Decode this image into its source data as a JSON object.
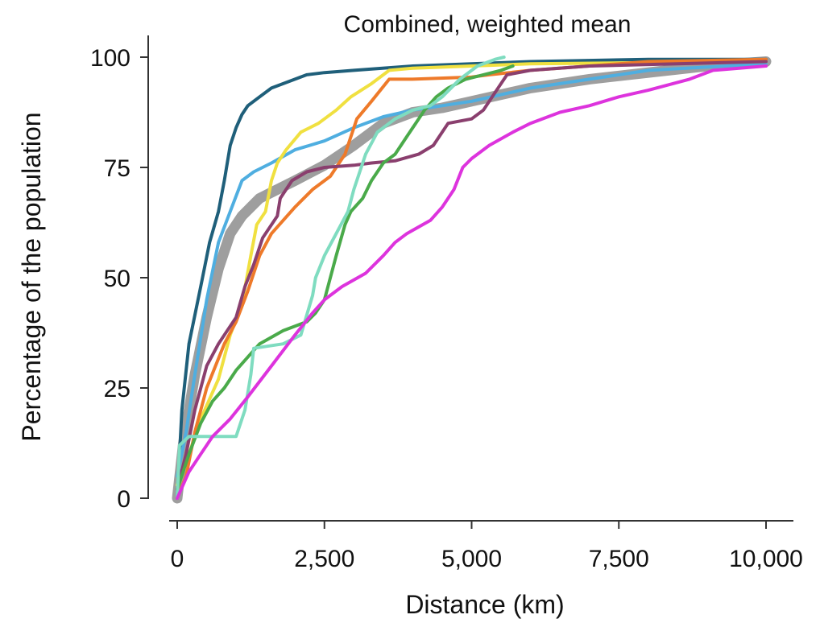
{
  "chart_data": {
    "type": "line",
    "title": "Combined, weighted mean",
    "xlabel": "Distance (km)",
    "ylabel": "Percentage of the population",
    "xlim": [
      0,
      10000
    ],
    "ylim": [
      0,
      100
    ],
    "xticks": [
      0,
      2500,
      5000,
      7500,
      10000
    ],
    "xtick_labels": [
      "0",
      "2,500",
      "5,000",
      "7,500",
      "10,000"
    ],
    "yticks": [
      0,
      25,
      50,
      75,
      100
    ],
    "ytick_labels": [
      "0",
      "25",
      "50",
      "75",
      "100"
    ],
    "grid": false,
    "series": [
      {
        "color": "#9e9e9e",
        "role": "weighted-mean",
        "points": [
          [
            0,
            0
          ],
          [
            100,
            12
          ],
          [
            300,
            28
          ],
          [
            500,
            41
          ],
          [
            700,
            52
          ],
          [
            900,
            60
          ],
          [
            1100,
            64
          ],
          [
            1400,
            68
          ],
          [
            2000,
            72
          ],
          [
            2500,
            75.5
          ],
          [
            3000,
            80
          ],
          [
            3500,
            85
          ],
          [
            4000,
            87.5
          ],
          [
            4500,
            88.5
          ],
          [
            5000,
            90
          ],
          [
            6000,
            93
          ],
          [
            7000,
            95
          ],
          [
            8000,
            96.5
          ],
          [
            9000,
            98
          ],
          [
            10000,
            99
          ]
        ]
      },
      {
        "color": "#1f5f7a",
        "points": [
          [
            0,
            0
          ],
          [
            80,
            20
          ],
          [
            200,
            35
          ],
          [
            400,
            48
          ],
          [
            550,
            58
          ],
          [
            700,
            65
          ],
          [
            800,
            72
          ],
          [
            900,
            80
          ],
          [
            1000,
            84
          ],
          [
            1100,
            87
          ],
          [
            1200,
            89
          ],
          [
            1400,
            91
          ],
          [
            1600,
            93
          ],
          [
            1800,
            94
          ],
          [
            2200,
            96
          ],
          [
            2500,
            96.5
          ],
          [
            3000,
            97
          ],
          [
            4000,
            98
          ],
          [
            5000,
            98.5
          ],
          [
            6000,
            99
          ],
          [
            8000,
            99.5
          ],
          [
            10000,
            99.5
          ]
        ]
      },
      {
        "color": "#4faee0",
        "points": [
          [
            0,
            5
          ],
          [
            150,
            15
          ],
          [
            300,
            28
          ],
          [
            500,
            45
          ],
          [
            700,
            58
          ],
          [
            900,
            65
          ],
          [
            1100,
            72
          ],
          [
            1300,
            74
          ],
          [
            1600,
            76
          ],
          [
            2000,
            79
          ],
          [
            2500,
            81
          ],
          [
            3000,
            84
          ],
          [
            3500,
            86.5
          ],
          [
            4000,
            88
          ],
          [
            5000,
            90
          ],
          [
            6000,
            93
          ],
          [
            7000,
            95
          ],
          [
            8000,
            97
          ],
          [
            10000,
            98.5
          ]
        ]
      },
      {
        "color": "#f0e040",
        "points": [
          [
            0,
            3
          ],
          [
            200,
            10
          ],
          [
            400,
            18
          ],
          [
            700,
            27
          ],
          [
            900,
            37
          ],
          [
            1100,
            44
          ],
          [
            1250,
            55
          ],
          [
            1350,
            62
          ],
          [
            1500,
            65
          ],
          [
            1600,
            72
          ],
          [
            1700,
            76
          ],
          [
            1850,
            79
          ],
          [
            2100,
            83
          ],
          [
            2400,
            85
          ],
          [
            2700,
            88
          ],
          [
            2950,
            91
          ],
          [
            3300,
            94
          ],
          [
            3600,
            97
          ],
          [
            4000,
            97.5
          ],
          [
            5000,
            98
          ],
          [
            6000,
            98.5
          ],
          [
            10000,
            99
          ]
        ]
      },
      {
        "color": "#ee7a2a",
        "points": [
          [
            0,
            0
          ],
          [
            150,
            5
          ],
          [
            300,
            15
          ],
          [
            500,
            25
          ],
          [
            800,
            35
          ],
          [
            1000,
            40
          ],
          [
            1200,
            47
          ],
          [
            1400,
            55
          ],
          [
            1600,
            60
          ],
          [
            2000,
            66
          ],
          [
            2300,
            70
          ],
          [
            2600,
            73
          ],
          [
            2850,
            78
          ],
          [
            3050,
            86
          ],
          [
            3300,
            90
          ],
          [
            3600,
            95
          ],
          [
            4000,
            95
          ],
          [
            5000,
            95.5
          ],
          [
            5300,
            96
          ],
          [
            6000,
            97
          ],
          [
            7000,
            98
          ],
          [
            8000,
            99
          ],
          [
            10000,
            99.5
          ]
        ]
      },
      {
        "color": "#8a3f6e",
        "points": [
          [
            0,
            2
          ],
          [
            150,
            10
          ],
          [
            300,
            20
          ],
          [
            500,
            30
          ],
          [
            700,
            35
          ],
          [
            800,
            37
          ],
          [
            1000,
            41
          ],
          [
            1150,
            48
          ],
          [
            1300,
            53
          ],
          [
            1450,
            59
          ],
          [
            1700,
            64
          ],
          [
            1750,
            68
          ],
          [
            1950,
            72
          ],
          [
            2200,
            74
          ],
          [
            2500,
            75
          ],
          [
            3000,
            75.5
          ],
          [
            3300,
            76
          ],
          [
            3700,
            76.5
          ],
          [
            4100,
            78
          ],
          [
            4350,
            80
          ],
          [
            4600,
            85
          ],
          [
            5000,
            86
          ],
          [
            5200,
            88
          ],
          [
            5400,
            92
          ],
          [
            5600,
            96
          ],
          [
            6000,
            97
          ],
          [
            7000,
            98
          ],
          [
            10000,
            99
          ]
        ]
      },
      {
        "color": "#4aaa4a",
        "points": [
          [
            0,
            2
          ],
          [
            200,
            10
          ],
          [
            400,
            17
          ],
          [
            600,
            22
          ],
          [
            800,
            25
          ],
          [
            1000,
            29
          ],
          [
            1200,
            32
          ],
          [
            1400,
            35
          ],
          [
            1800,
            38
          ],
          [
            2200,
            40
          ],
          [
            2350,
            42
          ],
          [
            2500,
            45
          ],
          [
            2700,
            55
          ],
          [
            2850,
            62
          ],
          [
            2950,
            65
          ],
          [
            3150,
            68
          ],
          [
            3300,
            72
          ],
          [
            3500,
            76
          ],
          [
            3700,
            78
          ],
          [
            3900,
            82
          ],
          [
            4050,
            85
          ],
          [
            4200,
            88
          ],
          [
            4400,
            91
          ],
          [
            4600,
            93
          ],
          [
            4900,
            95
          ],
          [
            5200,
            96
          ],
          [
            5500,
            97
          ],
          [
            5700,
            98
          ]
        ]
      },
      {
        "color": "#7fdcc0",
        "points": [
          [
            0,
            0
          ],
          [
            40,
            12
          ],
          [
            200,
            14
          ],
          [
            500,
            14
          ],
          [
            1000,
            14
          ],
          [
            1150,
            20
          ],
          [
            1250,
            28
          ],
          [
            1300,
            34
          ],
          [
            1800,
            35
          ],
          [
            2100,
            37
          ],
          [
            2300,
            46
          ],
          [
            2350,
            50
          ],
          [
            2500,
            55
          ],
          [
            2700,
            60
          ],
          [
            2900,
            65
          ],
          [
            3000,
            70
          ],
          [
            3200,
            78
          ],
          [
            3400,
            83
          ],
          [
            3700,
            86
          ],
          [
            4000,
            88
          ],
          [
            4300,
            89
          ],
          [
            4500,
            91
          ],
          [
            4800,
            95
          ],
          [
            5100,
            98
          ],
          [
            5400,
            99.5
          ],
          [
            5550,
            100
          ]
        ]
      },
      {
        "color": "#dd33dd",
        "points": [
          [
            0,
            0
          ],
          [
            200,
            6
          ],
          [
            400,
            10
          ],
          [
            600,
            14
          ],
          [
            900,
            18
          ],
          [
            1200,
            23
          ],
          [
            1600,
            30
          ],
          [
            2000,
            37
          ],
          [
            2300,
            42
          ],
          [
            2500,
            45
          ],
          [
            2800,
            48
          ],
          [
            3200,
            51
          ],
          [
            3500,
            55
          ],
          [
            3700,
            58
          ],
          [
            3900,
            60
          ],
          [
            4300,
            63
          ],
          [
            4500,
            66
          ],
          [
            4700,
            70
          ],
          [
            4850,
            75
          ],
          [
            5000,
            77
          ],
          [
            5300,
            80
          ],
          [
            5700,
            83
          ],
          [
            6000,
            85
          ],
          [
            6500,
            87.5
          ],
          [
            7000,
            89
          ],
          [
            7500,
            91
          ],
          [
            8000,
            92.5
          ],
          [
            8700,
            95
          ],
          [
            9100,
            97
          ],
          [
            10000,
            98
          ]
        ]
      }
    ]
  }
}
